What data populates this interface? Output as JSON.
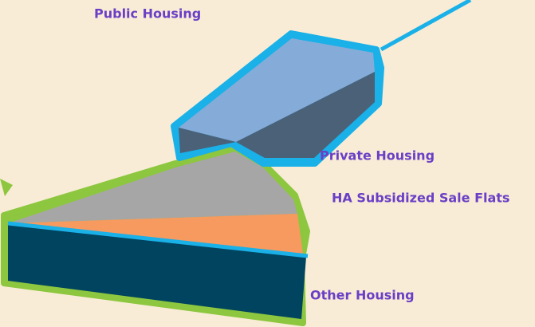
{
  "labels": [
    "Public Housing",
    "Private Housing",
    "HA Subsidized Sale Flats",
    "Other Housing"
  ]
}
